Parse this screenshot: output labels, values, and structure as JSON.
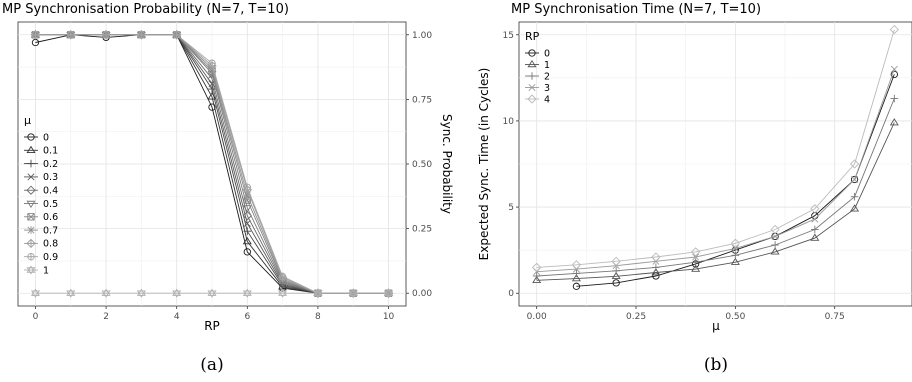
{
  "chart_data": [
    {
      "type": "line",
      "title": "MP Synchronisation Probability (N=7, T=10)",
      "xlabel": "RP",
      "ylabel": "Sync. Probability",
      "xlim": [
        0,
        10
      ],
      "ylim": [
        0,
        1
      ],
      "xticks": [
        0,
        2,
        4,
        6,
        8,
        10
      ],
      "yticks": [
        0,
        0.25,
        0.5,
        0.75,
        1
      ],
      "ytick_labels": [
        "0.00",
        "0.25",
        "0.50",
        "0.75",
        "1.00"
      ],
      "xtick_labels": [
        "0",
        "2",
        "4",
        "6",
        "8",
        "10"
      ],
      "y_axis_side": "right",
      "grid": true,
      "legend": {
        "title": "μ",
        "position": "left-middle"
      },
      "x": [
        0,
        1,
        2,
        3,
        4,
        5,
        6,
        7,
        8,
        9,
        10
      ],
      "series": [
        {
          "name": "0",
          "color": "#1a1a1a",
          "marker": "circle",
          "values": [
            0.97,
            1,
            0.99,
            1,
            1,
            0.72,
            0.16,
            0.02,
            0,
            0,
            0
          ]
        },
        {
          "name": "0.1",
          "color": "#333333",
          "marker": "triangle",
          "values": [
            1,
            1,
            1,
            1,
            1,
            0.76,
            0.2,
            0.025,
            0,
            0,
            0
          ]
        },
        {
          "name": "0.2",
          "color": "#474747",
          "marker": "plus",
          "values": [
            1,
            1,
            1,
            1,
            1,
            0.79,
            0.24,
            0.03,
            0,
            0,
            0
          ]
        },
        {
          "name": "0.3",
          "color": "#5a5a5a",
          "marker": "cross",
          "values": [
            1,
            1,
            1,
            1,
            1,
            0.81,
            0.27,
            0.035,
            0,
            0,
            0
          ]
        },
        {
          "name": "0.4",
          "color": "#6a6a6a",
          "marker": "diamond",
          "values": [
            1,
            1,
            1,
            1,
            1,
            0.83,
            0.3,
            0.04,
            0,
            0,
            0
          ]
        },
        {
          "name": "0.5",
          "color": "#787878",
          "marker": "triangle-down",
          "values": [
            1,
            1,
            1,
            1,
            1,
            0.85,
            0.33,
            0.045,
            0,
            0,
            0
          ]
        },
        {
          "name": "0.6",
          "color": "#858585",
          "marker": "square-cross",
          "values": [
            1,
            1,
            1,
            1,
            1,
            0.86,
            0.36,
            0.05,
            0,
            0,
            0
          ]
        },
        {
          "name": "0.7",
          "color": "#919191",
          "marker": "asterisk",
          "values": [
            1,
            1,
            1,
            1,
            1,
            0.87,
            0.38,
            0.055,
            0,
            0,
            0
          ]
        },
        {
          "name": "0.8",
          "color": "#9c9c9c",
          "marker": "diamond-plus",
          "values": [
            1,
            1,
            1,
            1,
            1,
            0.88,
            0.4,
            0.06,
            0,
            0,
            0
          ]
        },
        {
          "name": "0.9",
          "color": "#a6a6a6",
          "marker": "circle-plus",
          "values": [
            1,
            1,
            1,
            1,
            1,
            0.89,
            0.41,
            0.065,
            0,
            0,
            0
          ]
        },
        {
          "name": "1",
          "color": "#b0b0b0",
          "marker": "star",
          "values": [
            0,
            0,
            0,
            0,
            0,
            0,
            0,
            0,
            0,
            0,
            0
          ]
        }
      ]
    },
    {
      "type": "line",
      "title": "MP Synchronisation Time (N=7, T=10)",
      "xlabel": "μ",
      "ylabel": "Expected Sync. Time (in Cycles)",
      "xlim": [
        0,
        0.9
      ],
      "ylim": [
        0,
        15
      ],
      "xticks": [
        0,
        0.25,
        0.5,
        0.75
      ],
      "xtick_labels": [
        "0.00",
        "0.25",
        "0.50",
        "0.75"
      ],
      "yticks": [
        0,
        5,
        10,
        15
      ],
      "ytick_labels": [
        "0",
        "5",
        "10",
        "15"
      ],
      "grid": true,
      "legend": {
        "title": "RP",
        "position": "top-left"
      },
      "series": [
        {
          "name": "0",
          "color": "#1a1a1a",
          "marker": "circle",
          "x": [
            0.1,
            0.2,
            0.3,
            0.4,
            0.5,
            0.6,
            0.7,
            0.8,
            0.9
          ],
          "values": [
            0.4,
            0.6,
            1.0,
            1.7,
            2.5,
            3.3,
            4.5,
            6.6,
            12.7
          ]
        },
        {
          "name": "1",
          "color": "#555555",
          "marker": "triangle",
          "x": [
            0,
            0.1,
            0.2,
            0.3,
            0.4,
            0.5,
            0.6,
            0.7,
            0.8,
            0.9
          ],
          "values": [
            0.75,
            0.85,
            0.98,
            1.2,
            1.4,
            1.8,
            2.4,
            3.2,
            4.9,
            9.9
          ]
        },
        {
          "name": "2",
          "color": "#777777",
          "marker": "plus",
          "x": [
            0,
            0.1,
            0.2,
            0.3,
            0.4,
            0.5,
            0.6,
            0.7,
            0.8,
            0.9
          ],
          "values": [
            1.0,
            1.15,
            1.3,
            1.5,
            1.8,
            2.2,
            2.8,
            3.7,
            5.6,
            11.3
          ]
        },
        {
          "name": "3",
          "color": "#999999",
          "marker": "cross",
          "x": [
            0,
            0.1,
            0.2,
            0.3,
            0.4,
            0.5,
            0.6,
            0.7,
            0.8,
            0.9
          ],
          "values": [
            1.25,
            1.4,
            1.6,
            1.85,
            2.1,
            2.6,
            3.3,
            4.3,
            6.6,
            13.0
          ]
        },
        {
          "name": "4",
          "color": "#bbbbbb",
          "marker": "diamond",
          "x": [
            0,
            0.1,
            0.2,
            0.3,
            0.4,
            0.5,
            0.6,
            0.7,
            0.8,
            0.9
          ],
          "values": [
            1.5,
            1.65,
            1.85,
            2.1,
            2.4,
            2.9,
            3.7,
            4.9,
            7.5,
            15.3
          ]
        }
      ]
    }
  ],
  "captions": [
    "(a)",
    "(b)"
  ]
}
